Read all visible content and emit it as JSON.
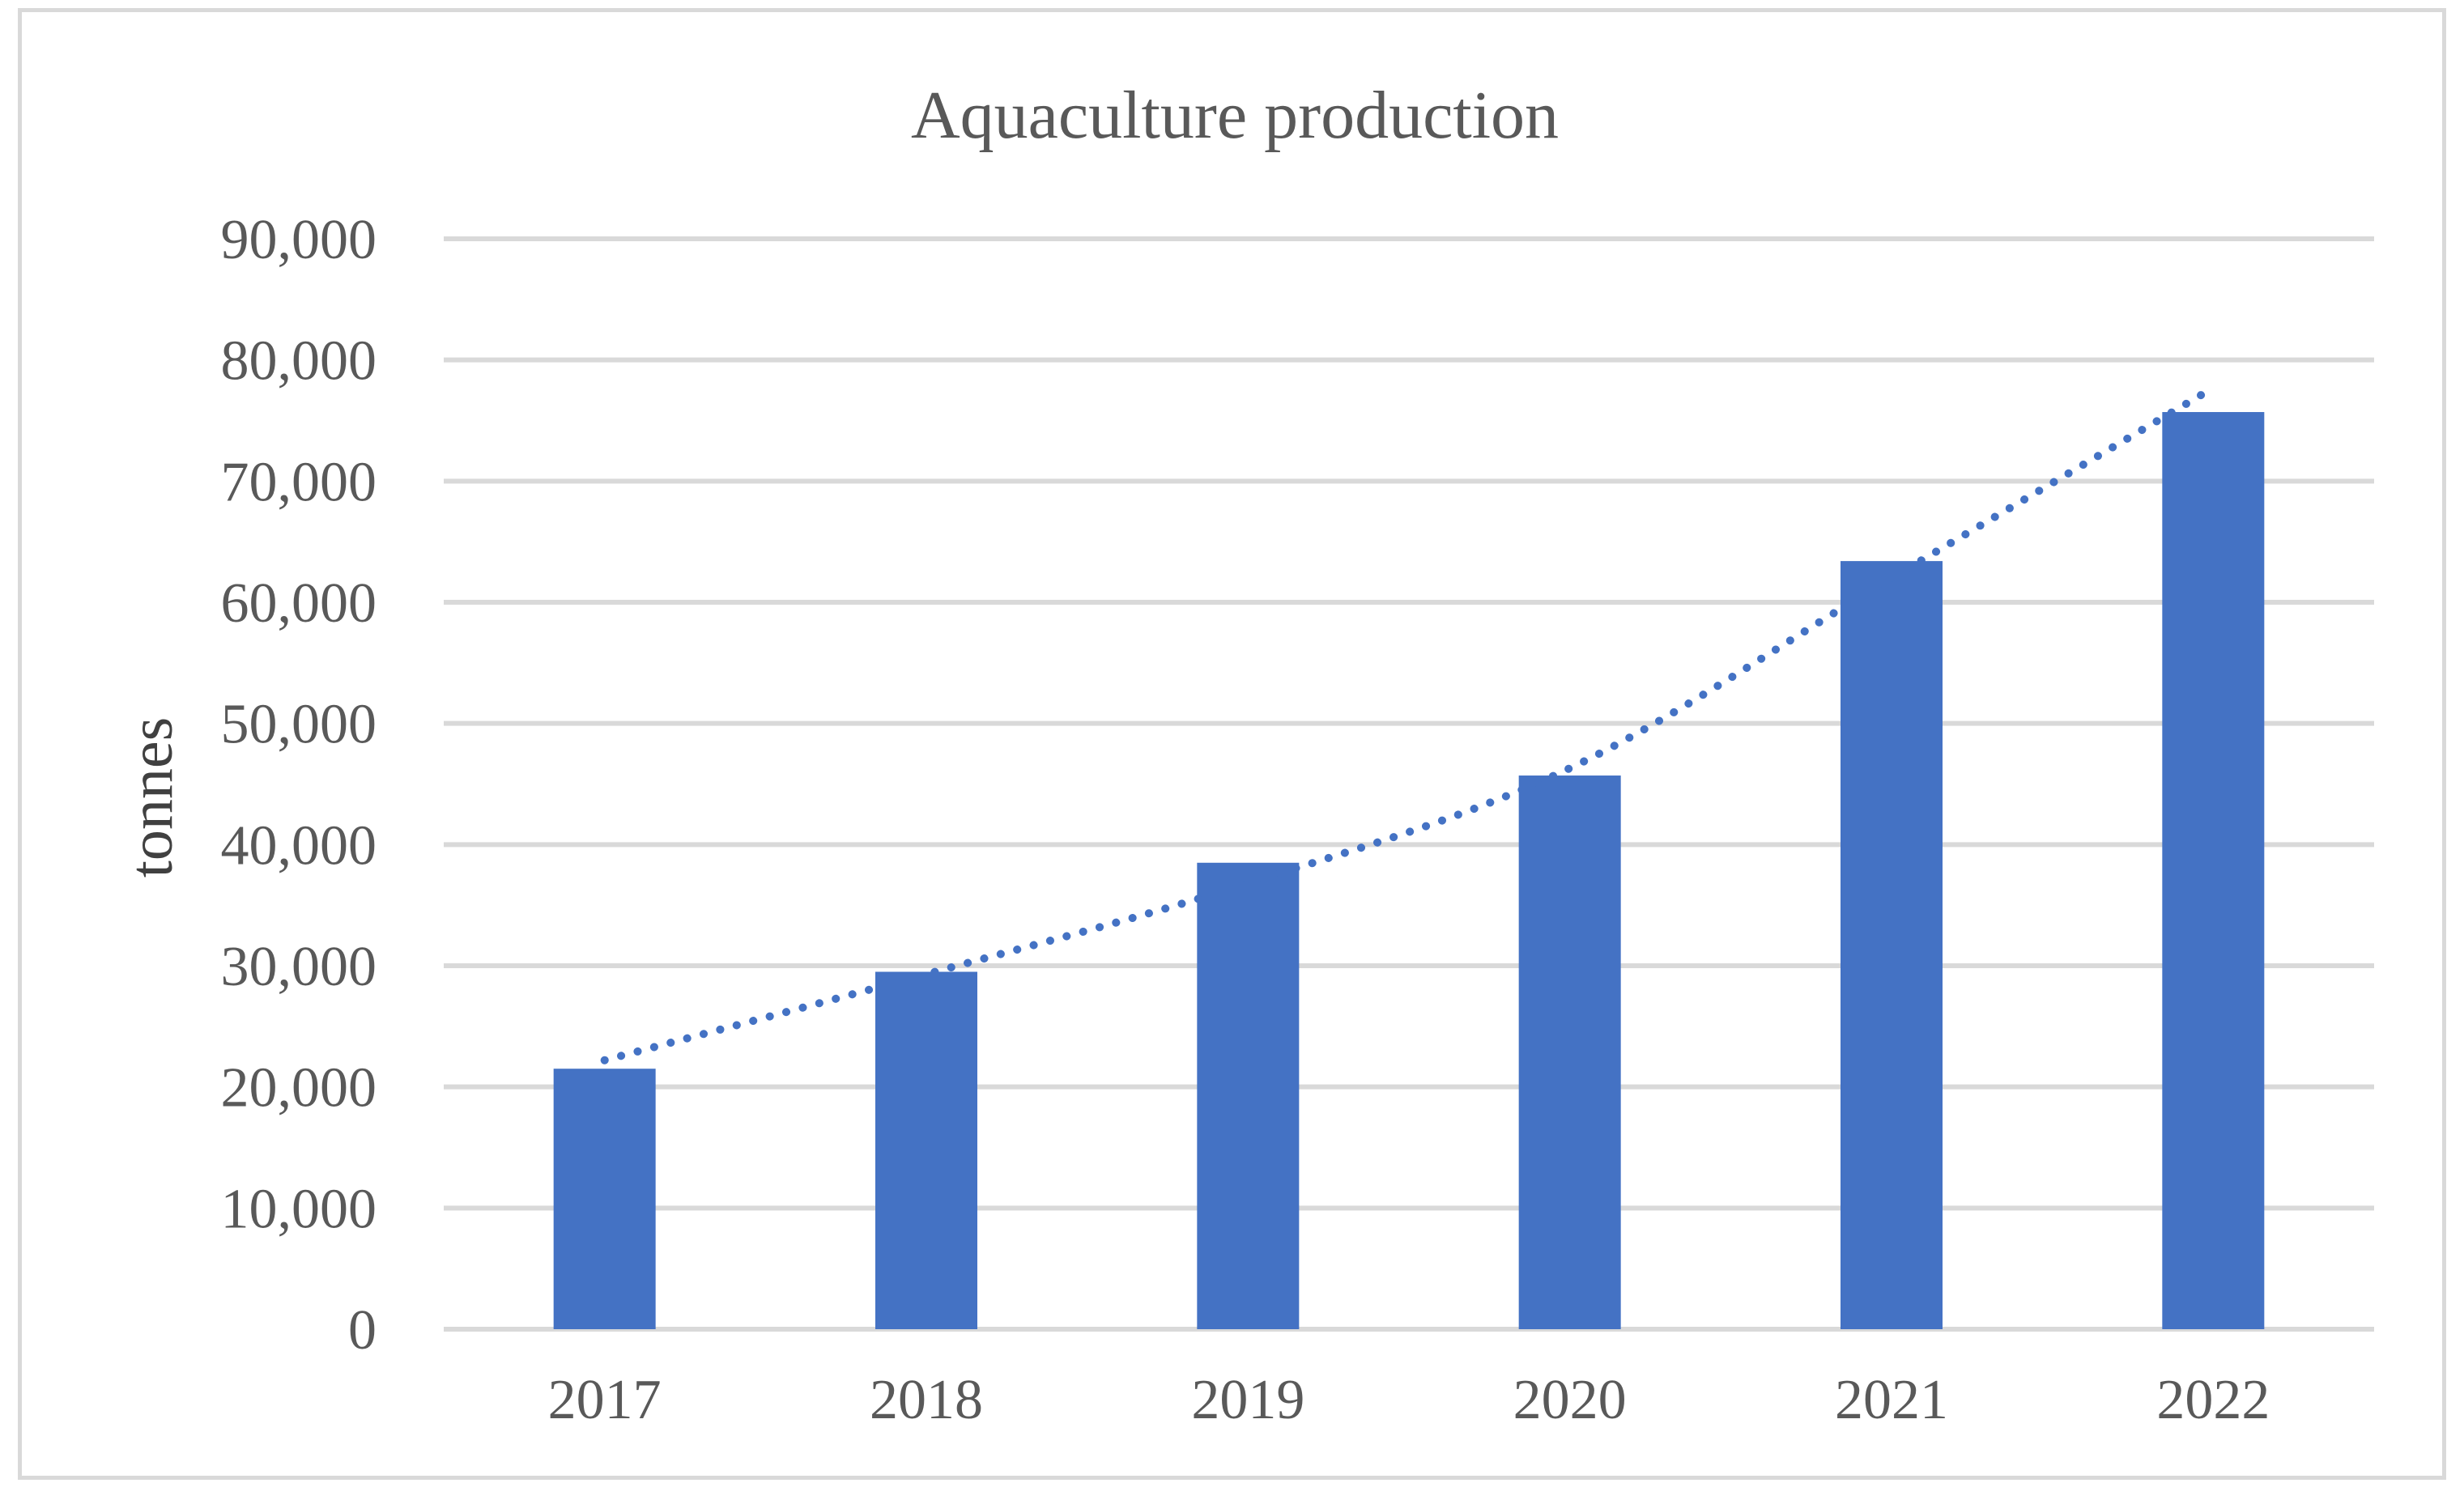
{
  "chart_data": {
    "type": "bar",
    "title": "Aquaculture production",
    "xlabel": "",
    "ylabel": "tonnes",
    "categories": [
      "2017",
      "2018",
      "2019",
      "2020",
      "2021",
      "2022"
    ],
    "series": [
      {
        "name": "Aquaculture production",
        "values": [
          21500,
          29500,
          38500,
          45700,
          63400,
          75700
        ]
      }
    ],
    "ylim": [
      0,
      90000
    ],
    "yticks": [
      0,
      10000,
      20000,
      30000,
      40000,
      50000,
      60000,
      70000,
      80000,
      90000
    ],
    "ytick_labels": [
      "0",
      "10,000",
      "20,000",
      "30,000",
      "40,000",
      "50,000",
      "60,000",
      "70,000",
      "80,000",
      "90,000"
    ],
    "grid": true,
    "legend": "none",
    "trendline": {
      "type": "exponential",
      "style": "dotted",
      "values": [
        22200,
        29300,
        36800,
        46300,
        62000,
        77700
      ]
    },
    "colors": {
      "bar": "#4472c4",
      "trendline": "#4472c4",
      "grid": "#d9d9d9",
      "text": "#595959"
    }
  }
}
